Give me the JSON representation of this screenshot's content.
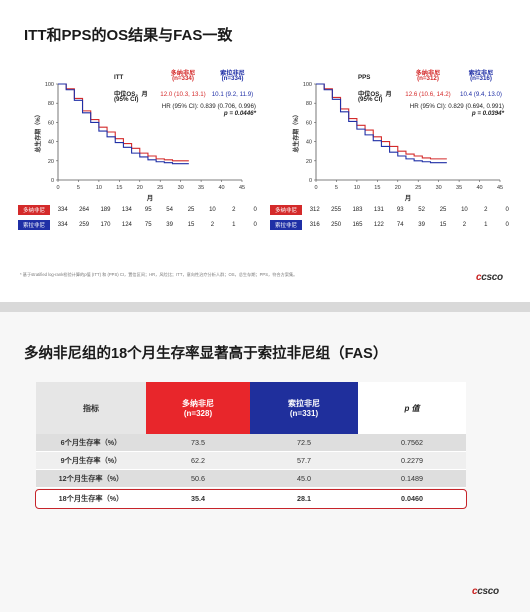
{
  "slide1": {
    "title": "ITT和PPS的OS结果与FAS一致",
    "panels": [
      {
        "name": "ITT",
        "dona_label": "多纳非尼",
        "dona_n": "(n=334)",
        "sola_label": "索拉非尼",
        "sola_n": "(n=334)",
        "os_label_1": "中位OS，月",
        "os_label_2": "(95% CI)",
        "dona_os": "12.0 (10.3, 13.1)",
        "sola_os": "10.1 (9.2, 11.9)",
        "hr": "HR (95% CI): 0.839 (0.706, 0.996)",
        "p": "p = 0.0446*",
        "ylabel": "总生存期（%）",
        "xlabel": "月",
        "yticks": [
          "0",
          "20",
          "40",
          "60",
          "80",
          "100"
        ],
        "xticks": [
          "0",
          "5",
          "10",
          "15",
          "20",
          "25",
          "30",
          "35",
          "40",
          "45"
        ],
        "risk_dona_label": "多纳非尼",
        "risk_sola_label": "索拉非尼",
        "risk_dona": [
          "334",
          "264",
          "189",
          "134",
          "95",
          "54",
          "25",
          "10",
          "2",
          "0"
        ],
        "risk_sola": [
          "334",
          "259",
          "170",
          "124",
          "75",
          "39",
          "15",
          "2",
          "1",
          "0"
        ]
      },
      {
        "name": "PPS",
        "dona_label": "多纳非尼",
        "dona_n": "(n=312)",
        "sola_label": "索拉非尼",
        "sola_n": "(n=316)",
        "os_label_1": "中位OS，月",
        "os_label_2": "(95% CI)",
        "dona_os": "12.6 (10.6, 14.2)",
        "sola_os": "10.4 (9.4, 13.0)",
        "hr": "HR (95% CI): 0.829 (0.694, 0.991)",
        "p": "p = 0.0394*",
        "ylabel": "总生存期（%）",
        "xlabel": "月",
        "yticks": [
          "0",
          "20",
          "40",
          "60",
          "80",
          "100"
        ],
        "xticks": [
          "0",
          "5",
          "10",
          "15",
          "20",
          "25",
          "30",
          "35",
          "40",
          "45"
        ],
        "risk_dona_label": "多纳非尼",
        "risk_sola_label": "索拉非尼",
        "risk_dona": [
          "312",
          "255",
          "183",
          "131",
          "93",
          "52",
          "25",
          "10",
          "2",
          "0"
        ],
        "risk_sola": [
          "316",
          "250",
          "165",
          "122",
          "74",
          "39",
          "15",
          "2",
          "1",
          "0"
        ]
      }
    ],
    "footnote": "* 基于stratified log-rank检验计算的p值 (ITT) 和 (PPS) CI，置信区间；HR，风险比；ITT，意向性治疗分析人群；OS，总生存期；PPS，符合方案集。",
    "logo": "csco"
  },
  "slide2": {
    "title": "多纳非尼组的18个月生存率显著高于索拉非尼组（FAS）",
    "headers": {
      "metric": "指标",
      "dona": "多纳非尼",
      "dona_n": "(n=328)",
      "sola": "索拉非尼",
      "sola_n": "(n=331)",
      "p": "p 值"
    },
    "rows": [
      {
        "metric": "6个月生存率（%）",
        "dona": "73.5",
        "sola": "72.5",
        "p": "0.7562"
      },
      {
        "metric": "9个月生存率（%）",
        "dona": "62.2",
        "sola": "57.7",
        "p": "0.2279"
      },
      {
        "metric": "12个月生存率（%）",
        "dona": "50.6",
        "sola": "45.0",
        "p": "0.1489"
      },
      {
        "metric": "18个月生存率（%）",
        "dona": "35.4",
        "sola": "28.1",
        "p": "0.0460"
      }
    ],
    "logo": "csco"
  },
  "colors": {
    "dona": "#d42a2a",
    "sola": "#1f2fa6",
    "highlight": "#c6242a"
  },
  "chart_data": [
    {
      "type": "line",
      "title": "ITT",
      "xlabel": "月",
      "ylabel": "总生存期（%）",
      "xlim": [
        0,
        45
      ],
      "ylim": [
        0,
        100
      ],
      "series": [
        {
          "name": "多纳非尼",
          "x": [
            0,
            2,
            4,
            6,
            8,
            10,
            12,
            14,
            16,
            18,
            20,
            22,
            24,
            26,
            28,
            30,
            32
          ],
          "y": [
            100,
            95,
            85,
            72,
            63,
            55,
            50,
            43,
            38,
            33,
            28,
            25,
            22,
            21,
            20,
            20,
            20
          ]
        },
        {
          "name": "索拉非尼",
          "x": [
            0,
            2,
            4,
            6,
            8,
            10,
            12,
            14,
            16,
            18,
            20,
            22,
            24,
            26,
            28,
            30,
            32
          ],
          "y": [
            100,
            94,
            83,
            70,
            60,
            51,
            45,
            39,
            34,
            28,
            24,
            21,
            19,
            18,
            17,
            17,
            17
          ]
        }
      ]
    },
    {
      "type": "line",
      "title": "PPS",
      "xlabel": "月",
      "ylabel": "总生存期（%）",
      "xlim": [
        0,
        45
      ],
      "ylim": [
        0,
        100
      ],
      "series": [
        {
          "name": "多纳非尼",
          "x": [
            0,
            2,
            4,
            6,
            8,
            10,
            12,
            14,
            16,
            18,
            20,
            22,
            24,
            26,
            28,
            30,
            32
          ],
          "y": [
            100,
            95,
            86,
            74,
            64,
            57,
            52,
            45,
            40,
            35,
            30,
            27,
            25,
            23,
            22,
            22,
            22
          ]
        },
        {
          "name": "索拉非尼",
          "x": [
            0,
            2,
            4,
            6,
            8,
            10,
            12,
            14,
            16,
            18,
            20,
            22,
            24,
            26,
            28,
            30,
            32
          ],
          "y": [
            100,
            94,
            84,
            71,
            61,
            53,
            47,
            41,
            35,
            29,
            25,
            22,
            20,
            19,
            18,
            18,
            18
          ]
        }
      ]
    }
  ]
}
